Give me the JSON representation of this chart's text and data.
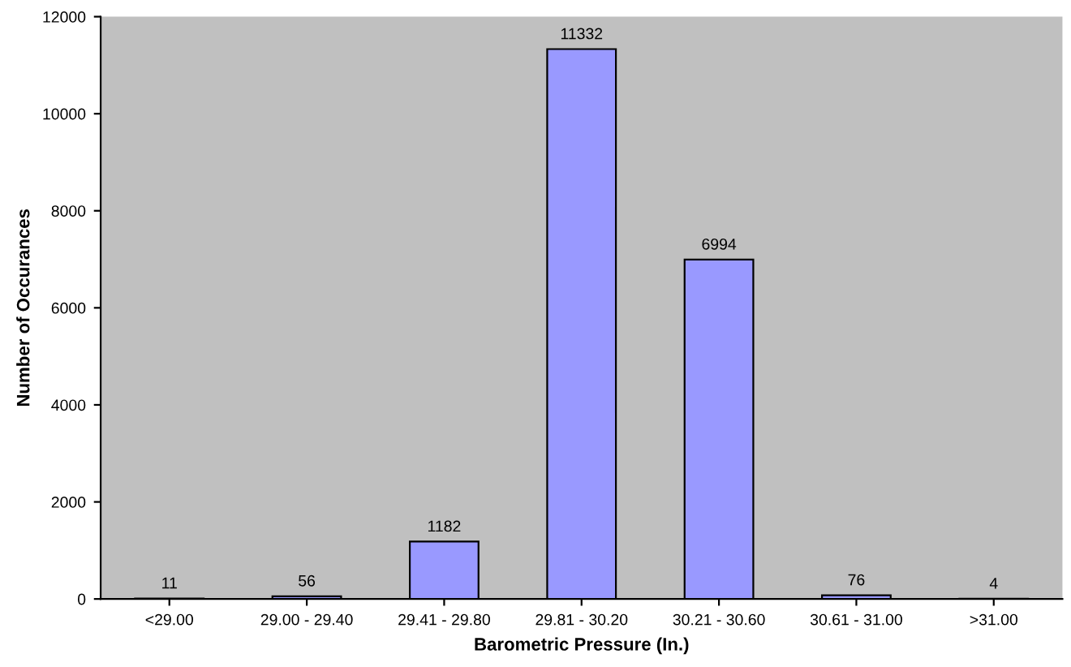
{
  "chart_data": {
    "type": "bar",
    "xlabel": "Barometric Pressure (In.)",
    "ylabel": "Number of Occurances",
    "categories": [
      "<29.00",
      "29.00 - 29.40",
      "29.41 - 29.80",
      "29.81 - 30.20",
      "30.21 - 30.60",
      "30.61 - 31.00",
      ">31.00"
    ],
    "values": [
      11,
      56,
      1182,
      11332,
      6994,
      76,
      4
    ],
    "color": "#9999ff",
    "ylim": [
      0,
      12000
    ],
    "yticks": [
      0,
      2000,
      4000,
      6000,
      8000,
      10000,
      12000
    ],
    "grid": false,
    "data_labels": true
  }
}
